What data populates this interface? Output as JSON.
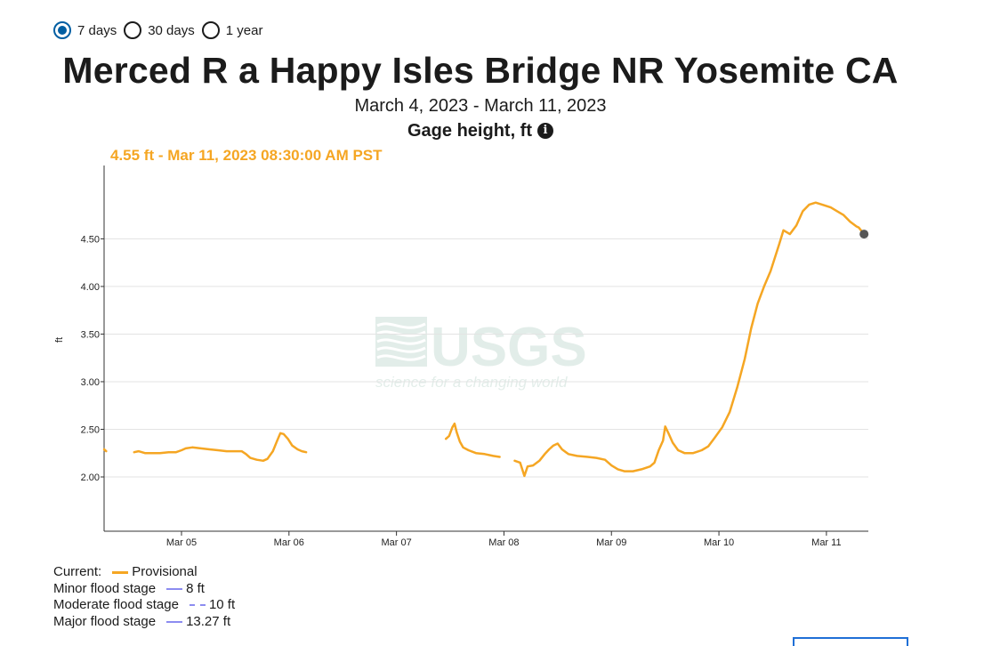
{
  "period_options": [
    {
      "label": "7 days",
      "selected": true
    },
    {
      "label": "30 days",
      "selected": false
    },
    {
      "label": "1 year",
      "selected": false
    }
  ],
  "header": {
    "title": "Merced R a Happy Isles Bridge NR Yosemite CA",
    "date_range": "March 4, 2023 - March 11, 2023",
    "parameter": "Gage height, ft",
    "info_icon": "info-icon"
  },
  "tooltip_text": "4.55 ft - Mar 11, 2023 08:30:00 AM PST",
  "watermark": {
    "logo": "USGS",
    "tagline": "science for a changing world"
  },
  "colors": {
    "series": "#f5a623",
    "flood": "#8c8cf0",
    "grid": "#e3e3e3",
    "axis": "#333333",
    "marker": "#555555",
    "selected": "#005ea2"
  },
  "legend": {
    "current_label": "Current:",
    "provisional_label": "Provisional",
    "rows": [
      {
        "label": "Minor flood stage",
        "value": "8 ft",
        "style": "solid"
      },
      {
        "label": "Moderate flood stage",
        "value": "10 ft",
        "style": "dashed"
      },
      {
        "label": "Major flood stage",
        "value": "13.27 ft",
        "style": "solid"
      }
    ]
  },
  "chart_data": {
    "type": "line",
    "title": "Merced R a Happy Isles Bridge NR Yosemite CA",
    "subtitle": "March 4, 2023 - March 11, 2023",
    "xlabel": "",
    "ylabel": "ft",
    "x_ticks": [
      "Mar 05",
      "Mar 06",
      "Mar 07",
      "Mar 08",
      "Mar 09",
      "Mar 10",
      "Mar 11"
    ],
    "y_ticks": [
      "2.00",
      "2.50",
      "3.00",
      "3.50",
      "4.00",
      "4.50"
    ],
    "xlim_days": [
      4.28,
      11.39
    ],
    "ylim": [
      1.43,
      5.27
    ],
    "grid": true,
    "series": [
      {
        "name": "Provisional",
        "segments": [
          [
            [
              4.28,
              2.29
            ],
            [
              4.3,
              2.27
            ]
          ],
          [
            [
              4.56,
              2.26
            ],
            [
              4.6,
              2.27
            ],
            [
              4.66,
              2.25
            ],
            [
              4.72,
              2.25
            ],
            [
              4.8,
              2.25
            ],
            [
              4.88,
              2.26
            ],
            [
              4.95,
              2.26
            ],
            [
              5.0,
              2.28
            ],
            [
              5.04,
              2.3
            ],
            [
              5.1,
              2.31
            ],
            [
              5.18,
              2.3
            ],
            [
              5.26,
              2.29
            ],
            [
              5.34,
              2.28
            ],
            [
              5.42,
              2.27
            ],
            [
              5.5,
              2.27
            ],
            [
              5.56,
              2.27
            ],
            [
              5.6,
              2.24
            ],
            [
              5.64,
              2.2
            ],
            [
              5.7,
              2.18
            ],
            [
              5.76,
              2.17
            ],
            [
              5.8,
              2.19
            ],
            [
              5.85,
              2.27
            ],
            [
              5.89,
              2.38
            ],
            [
              5.92,
              2.46
            ],
            [
              5.95,
              2.45
            ],
            [
              5.99,
              2.4
            ],
            [
              6.03,
              2.33
            ],
            [
              6.08,
              2.29
            ],
            [
              6.12,
              2.27
            ],
            [
              6.16,
              2.26
            ]
          ],
          [
            [
              7.46,
              2.4
            ],
            [
              7.49,
              2.43
            ],
            [
              7.52,
              2.52
            ],
            [
              7.54,
              2.56
            ],
            [
              7.56,
              2.47
            ],
            [
              7.59,
              2.37
            ],
            [
              7.62,
              2.31
            ],
            [
              7.67,
              2.28
            ],
            [
              7.74,
              2.25
            ],
            [
              7.82,
              2.24
            ],
            [
              7.9,
              2.22
            ],
            [
              7.96,
              2.21
            ]
          ],
          [
            [
              8.1,
              2.17
            ],
            [
              8.15,
              2.15
            ],
            [
              8.19,
              2.01
            ],
            [
              8.22,
              2.11
            ],
            [
              8.27,
              2.12
            ],
            [
              8.33,
              2.17
            ],
            [
              8.38,
              2.24
            ],
            [
              8.42,
              2.29
            ],
            [
              8.46,
              2.33
            ],
            [
              8.5,
              2.35
            ],
            [
              8.54,
              2.29
            ],
            [
              8.6,
              2.24
            ],
            [
              8.68,
              2.22
            ],
            [
              8.78,
              2.21
            ],
            [
              8.86,
              2.2
            ],
            [
              8.94,
              2.18
            ],
            [
              9.0,
              2.12
            ],
            [
              9.06,
              2.08
            ],
            [
              9.12,
              2.06
            ],
            [
              9.2,
              2.06
            ],
            [
              9.28,
              2.08
            ],
            [
              9.36,
              2.11
            ],
            [
              9.4,
              2.15
            ],
            [
              9.44,
              2.28
            ],
            [
              9.48,
              2.38
            ],
            [
              9.5,
              2.53
            ],
            [
              9.53,
              2.46
            ],
            [
              9.57,
              2.36
            ],
            [
              9.62,
              2.28
            ],
            [
              9.68,
              2.25
            ],
            [
              9.76,
              2.25
            ],
            [
              9.84,
              2.28
            ],
            [
              9.9,
              2.32
            ],
            [
              9.96,
              2.41
            ],
            [
              10.03,
              2.52
            ],
            [
              10.1,
              2.68
            ],
            [
              10.17,
              2.94
            ],
            [
              10.24,
              3.24
            ],
            [
              10.3,
              3.56
            ],
            [
              10.36,
              3.82
            ],
            [
              10.42,
              4.0
            ],
            [
              10.48,
              4.16
            ],
            [
              10.52,
              4.3
            ],
            [
              10.56,
              4.44
            ],
            [
              10.6,
              4.59
            ],
            [
              10.66,
              4.55
            ],
            [
              10.72,
              4.64
            ],
            [
              10.78,
              4.79
            ],
            [
              10.84,
              4.86
            ],
            [
              10.9,
              4.88
            ],
            [
              10.96,
              4.86
            ],
            [
              11.04,
              4.83
            ],
            [
              11.1,
              4.79
            ],
            [
              11.16,
              4.75
            ],
            [
              11.22,
              4.68
            ],
            [
              11.28,
              4.63
            ],
            [
              11.3,
              4.62
            ],
            [
              11.35,
              4.55
            ]
          ]
        ]
      }
    ],
    "current_point": {
      "x": 11.35,
      "y": 4.55
    }
  }
}
